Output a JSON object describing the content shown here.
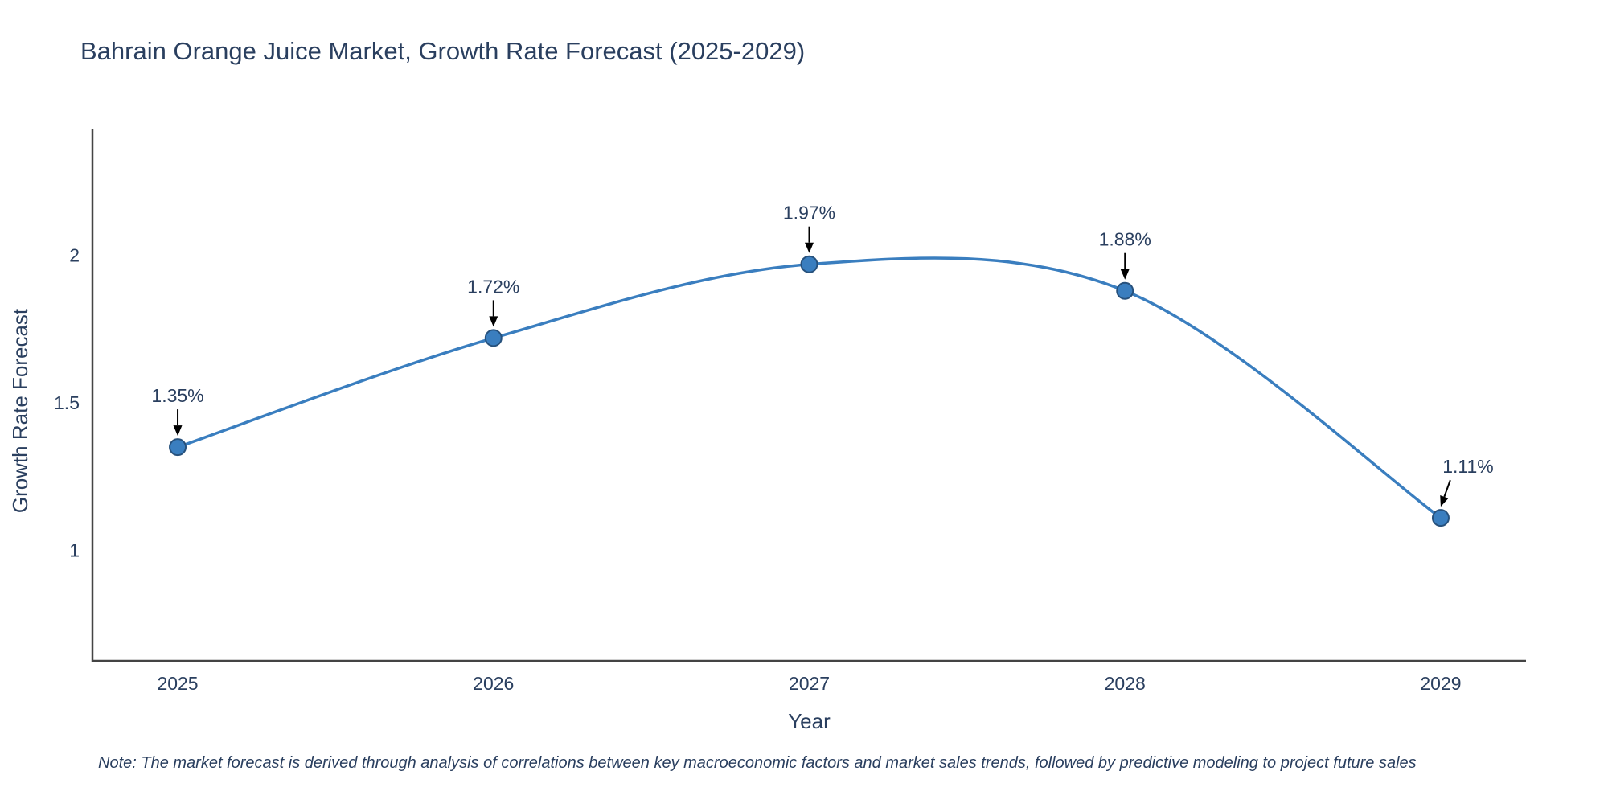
{
  "page": {
    "note": "Note: The market forecast is derived through analysis of correlations between key macroeconomic factors and market sales trends, followed by predictive modeling to project future sales"
  },
  "chart_data": {
    "type": "line",
    "title": "Bahrain Orange Juice Market, Growth Rate Forecast (2025-2029)",
    "xlabel": "Year",
    "ylabel": "Growth Rate Forecast",
    "x": [
      2025,
      2026,
      2027,
      2028,
      2029
    ],
    "series": [
      {
        "name": "Growth Rate Forecast",
        "values": [
          1.35,
          1.72,
          1.97,
          1.88,
          1.11
        ]
      }
    ],
    "point_labels": [
      "1.35%",
      "1.72%",
      "1.97%",
      "1.88%",
      "1.11%"
    ],
    "xtick_labels": [
      "2025",
      "2026",
      "2027",
      "2028",
      "2029"
    ],
    "yticks": [
      1,
      1.5,
      2
    ],
    "ytick_labels": [
      "1",
      "1.5",
      "2"
    ],
    "xlim": [
      2024.73,
      2029.27
    ],
    "ylim": [
      0.625,
      2.43
    ],
    "line_shape": "spline",
    "grid": false,
    "legend": false,
    "colors": {
      "line": "#3a7ebf",
      "marker": "#3a7ebf",
      "marker_edge": "#27517c",
      "axis": "#444444",
      "text": "#2a3f5f",
      "arrow": "#000000"
    }
  }
}
